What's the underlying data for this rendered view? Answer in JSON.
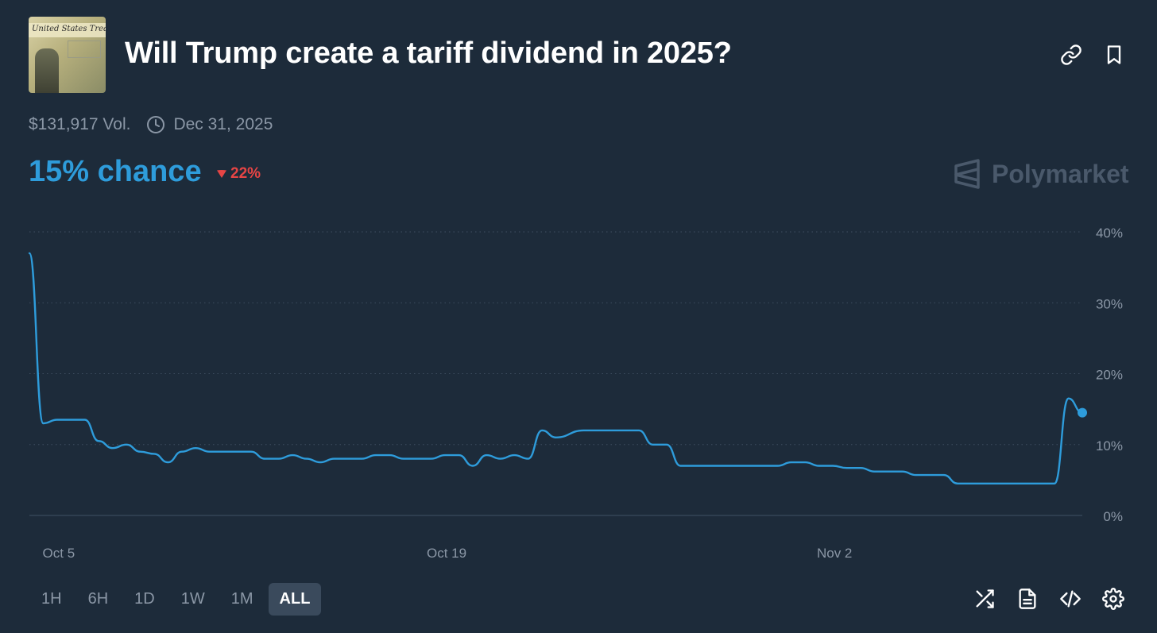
{
  "header": {
    "title": "Will Trump create a tariff dividend in 2025?",
    "thumbnail_text": "United States Treasury"
  },
  "meta": {
    "volume": "$131,917 Vol.",
    "end_date": "Dec 31, 2025"
  },
  "summary": {
    "chance": "15% chance",
    "change": "22%",
    "change_direction": "down",
    "change_color": "#e64545",
    "accent_color": "#2e9cdb"
  },
  "brand": {
    "name": "Polymarket"
  },
  "chart_data": {
    "type": "line",
    "x_tick_labels": [
      "Oct 5",
      "Oct 19",
      "Nov 2"
    ],
    "y_tick_labels": [
      "40%",
      "30%",
      "20%",
      "10%",
      "0%"
    ],
    "ylim": [
      0,
      40
    ],
    "xlim": [
      "2025-10-04",
      "2025-11-11"
    ],
    "grid": true,
    "series": [
      {
        "color": "#2e9cdb",
        "points": [
          [
            "2025-10-04",
            37
          ],
          [
            "2025-10-04T12:00",
            13
          ],
          [
            "2025-10-05",
            13.5
          ],
          [
            "2025-10-06",
            13.5
          ],
          [
            "2025-10-06T12:00",
            10.5
          ],
          [
            "2025-10-07",
            9.5
          ],
          [
            "2025-10-07T12:00",
            10
          ],
          [
            "2025-10-08",
            9
          ],
          [
            "2025-10-08T12:00",
            8.7
          ],
          [
            "2025-10-09",
            7.5
          ],
          [
            "2025-10-09T12:00",
            9
          ],
          [
            "2025-10-10",
            9.5
          ],
          [
            "2025-10-10T12:00",
            9
          ],
          [
            "2025-10-11",
            9
          ],
          [
            "2025-10-12",
            9
          ],
          [
            "2025-10-12T12:00",
            8
          ],
          [
            "2025-10-13",
            8
          ],
          [
            "2025-10-13T12:00",
            8.5
          ],
          [
            "2025-10-14",
            8
          ],
          [
            "2025-10-14T12:00",
            7.5
          ],
          [
            "2025-10-15",
            8
          ],
          [
            "2025-10-16",
            8
          ],
          [
            "2025-10-16T12:00",
            8.5
          ],
          [
            "2025-10-17",
            8.5
          ],
          [
            "2025-10-17T12:00",
            8
          ],
          [
            "2025-10-18",
            8
          ],
          [
            "2025-10-18T12:00",
            8
          ],
          [
            "2025-10-19",
            8.5
          ],
          [
            "2025-10-19T12:00",
            8.5
          ],
          [
            "2025-10-20",
            7
          ],
          [
            "2025-10-20T12:00",
            8.5
          ],
          [
            "2025-10-21",
            8
          ],
          [
            "2025-10-21T12:00",
            8.5
          ],
          [
            "2025-10-22",
            8
          ],
          [
            "2025-10-22T12:00",
            12
          ],
          [
            "2025-10-23",
            11
          ],
          [
            "2025-10-24",
            12
          ],
          [
            "2025-10-25",
            12
          ],
          [
            "2025-10-26",
            12
          ],
          [
            "2025-10-26T12:00",
            10
          ],
          [
            "2025-10-27",
            10
          ],
          [
            "2025-10-27T12:00",
            7
          ],
          [
            "2025-10-28",
            7
          ],
          [
            "2025-10-31",
            7
          ],
          [
            "2025-10-31T12:00",
            7.5
          ],
          [
            "2025-11-01",
            7.5
          ],
          [
            "2025-11-01T12:00",
            7
          ],
          [
            "2025-11-02",
            7
          ],
          [
            "2025-11-02T12:00",
            6.7
          ],
          [
            "2025-11-03",
            6.7
          ],
          [
            "2025-11-03T12:00",
            6.2
          ],
          [
            "2025-11-04",
            6.2
          ],
          [
            "2025-11-04T12:00",
            6.2
          ],
          [
            "2025-11-05",
            5.7
          ],
          [
            "2025-11-06",
            5.7
          ],
          [
            "2025-11-06T12:00",
            4.5
          ],
          [
            "2025-11-07",
            4.5
          ],
          [
            "2025-11-10",
            4.5
          ],
          [
            "2025-11-10T12:00",
            16.5
          ],
          [
            "2025-11-11",
            14.5
          ]
        ]
      }
    ]
  },
  "time_ranges": [
    {
      "label": "1H",
      "active": false
    },
    {
      "label": "6H",
      "active": false
    },
    {
      "label": "1D",
      "active": false
    },
    {
      "label": "1W",
      "active": false
    },
    {
      "label": "1M",
      "active": false
    },
    {
      "label": "ALL",
      "active": true
    }
  ],
  "toolbar": {
    "icons": [
      "shuffle-icon",
      "document-icon",
      "code-embed-icon",
      "settings-icon"
    ]
  },
  "header_actions": [
    "link-icon",
    "bookmark-icon"
  ]
}
